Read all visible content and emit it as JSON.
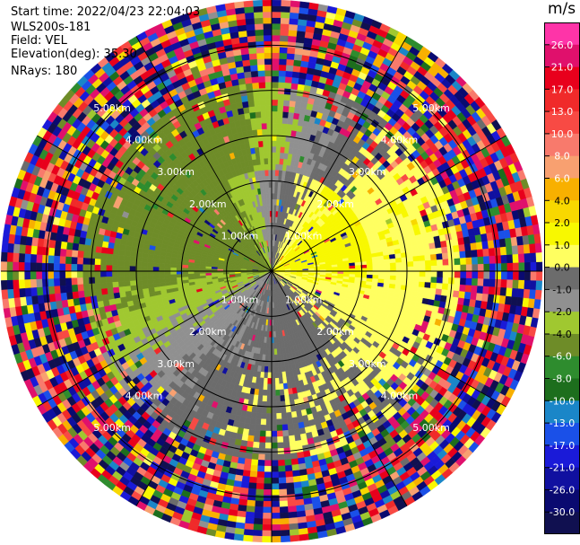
{
  "header": {
    "lines": [
      "Start time: 2022/04/23 22:04:03",
      "WLS200s-181",
      "Field: VEL",
      "Elevation(deg): 35.30",
      "NRays: 180"
    ]
  },
  "chart_data": {
    "type": "heatmap",
    "subtype": "radar-ppi",
    "field": "VEL",
    "units": "m/s",
    "range_rings_km": [
      1,
      2,
      3,
      4,
      5
    ],
    "range_labels": [
      "1.00km",
      "2.00km",
      "3.00km",
      "4.00km",
      "5.00km"
    ],
    "max_range_km": 5,
    "n_rays": 180,
    "colorbar": {
      "ticks": [
        "26.0",
        "21.0",
        "17.0",
        "13.0",
        "10.0",
        "8.0",
        "6.0",
        "4.0",
        "2.0",
        "1.0",
        "0.0",
        "-1.0",
        "-2.0",
        "-4.0",
        "-6.0",
        "-8.0",
        "-10.0",
        "-13.0",
        "-17.0",
        "-21.0",
        "-26.0",
        "-30.0"
      ],
      "colors": [
        "#fe34a8",
        "#e0106c",
        "#e8001c",
        "#f02a2a",
        "#f84a44",
        "#f87a6c",
        "#f8a070",
        "#f8b000",
        "#f8d800",
        "#f8f800",
        "#ffff60",
        "#6c6c6c",
        "#909090",
        "#a0c830",
        "#6e8c28",
        "#2e8c2e",
        "#1d6e1d",
        "#1a86c8",
        "#1a50e8",
        "#1a1ad8",
        "#1010a0",
        "#0a0a70",
        "#101050"
      ],
      "value_bounds": [
        30,
        26,
        21,
        17,
        13,
        10,
        8,
        6,
        4,
        2,
        1,
        0,
        -1,
        -2,
        -4,
        -6,
        -8,
        -10,
        -13,
        -17,
        -21,
        -26,
        -30
      ]
    }
  }
}
